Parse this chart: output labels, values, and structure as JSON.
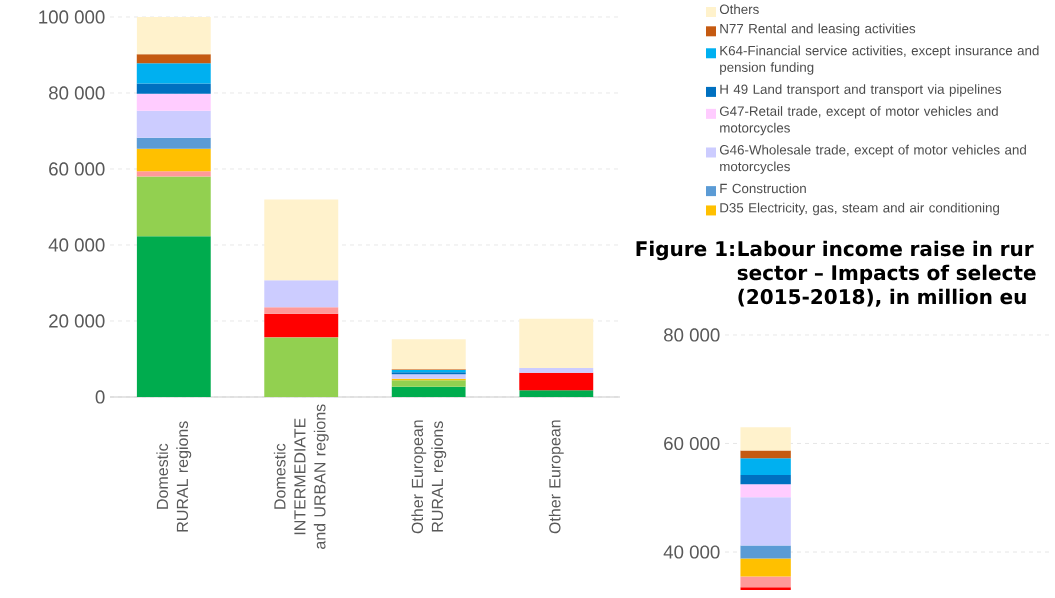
{
  "chart_data": [
    {
      "type": "bar",
      "stacked": true,
      "categories": [
        "Domestic RURAL regions",
        "Domestic INTERMEDIATE and URBAN regions",
        "Other European RURAL regions",
        "Other European"
      ],
      "ylim": [
        0,
        100000
      ],
      "yticks": [
        {
          "value": 0,
          "label": "0"
        },
        {
          "value": 20000,
          "label": "20 000"
        },
        {
          "value": 40000,
          "label": "40 000"
        },
        {
          "value": 60000,
          "label": "60 000"
        },
        {
          "value": 80000,
          "label": "80 000"
        },
        {
          "value": 100000,
          "label": "100 000"
        }
      ],
      "grid": "y",
      "legend": "right",
      "series": [
        {
          "color": "#00ac4e",
          "values": [
            42300,
            0,
            2700,
            1800
          ]
        },
        {
          "color": "#92d050",
          "values": [
            15700,
            15700,
            1700,
            0
          ]
        },
        {
          "color": "#ff0000",
          "values": [
            0,
            6200,
            0,
            4600
          ]
        },
        {
          "color": "#ff9999",
          "values": [
            1400,
            1700,
            0,
            0
          ]
        },
        {
          "name": "D35 Electricity, gas, steam and air conditioning",
          "color": "#ffc000",
          "values": [
            5900,
            0,
            400,
            0
          ]
        },
        {
          "name": "F Construction",
          "color": "#5b9bd5",
          "values": [
            2900,
            0,
            0,
            0
          ]
        },
        {
          "name": "G46-Wholesale trade, except of motor vehicles and motorcycles",
          "color": "#ccccff",
          "values": [
            7100,
            7100,
            1200,
            1200
          ]
        },
        {
          "name": "G47-Retail trade, except of motor vehicles and motorcycles",
          "color": "#ffccff",
          "values": [
            4500,
            0,
            0,
            0
          ]
        },
        {
          "name": "H 49 Land transport and transport via pipelines",
          "color": "#0070c0",
          "values": [
            2700,
            0,
            500,
            0
          ]
        },
        {
          "name": "K64-Financial service activities, except insurance and pension funding",
          "color": "#00b0f0",
          "values": [
            5300,
            0,
            600,
            0
          ]
        },
        {
          "name": "N77 Rental and leasing activities",
          "color": "#c55a11",
          "values": [
            2400,
            0,
            200,
            0
          ]
        },
        {
          "name": "Others",
          "color": "#fff2cc",
          "values": [
            9800,
            21300,
            7900,
            13000
          ]
        }
      ]
    },
    {
      "type": "bar",
      "title": "Figure 1:",
      "subtitle": "Labour income raise in rur sector – Impacts of selecte (2015-2018), in million eu",
      "categories": [
        null
      ],
      "ylim": [
        33000,
        80000
      ],
      "yticks": [
        {
          "value": 40000,
          "label": "40 000"
        },
        {
          "value": 60000,
          "label": "60 000"
        },
        {
          "value": 80000,
          "label": "80 000"
        }
      ],
      "grid": "y",
      "tick_labels": "y",
      "series": [
        {
          "color": "#ff0000",
          "base": [
            33000
          ],
          "values": [
            500
          ]
        },
        {
          "color": "#ff9999",
          "base": [
            33500
          ],
          "values": [
            2000
          ]
        },
        {
          "color": "#ffc000",
          "base": [
            35500
          ],
          "values": [
            3300
          ]
        },
        {
          "color": "#5b9bd5",
          "base": [
            38800
          ],
          "values": [
            2400
          ]
        },
        {
          "color": "#ccccff",
          "base": [
            41200
          ],
          "values": [
            8900
          ]
        },
        {
          "color": "#ffccff",
          "base": [
            50100
          ],
          "values": [
            2400
          ]
        },
        {
          "color": "#0070c0",
          "base": [
            52500
          ],
          "values": [
            1700
          ]
        },
        {
          "color": "#00b0f0",
          "base": [
            54200
          ],
          "values": [
            3100
          ]
        },
        {
          "color": "#c55a11",
          "base": [
            57300
          ],
          "values": [
            1400
          ]
        },
        {
          "color": "#fff2cc",
          "base": [
            58700
          ],
          "values": [
            4300
          ]
        }
      ]
    }
  ]
}
